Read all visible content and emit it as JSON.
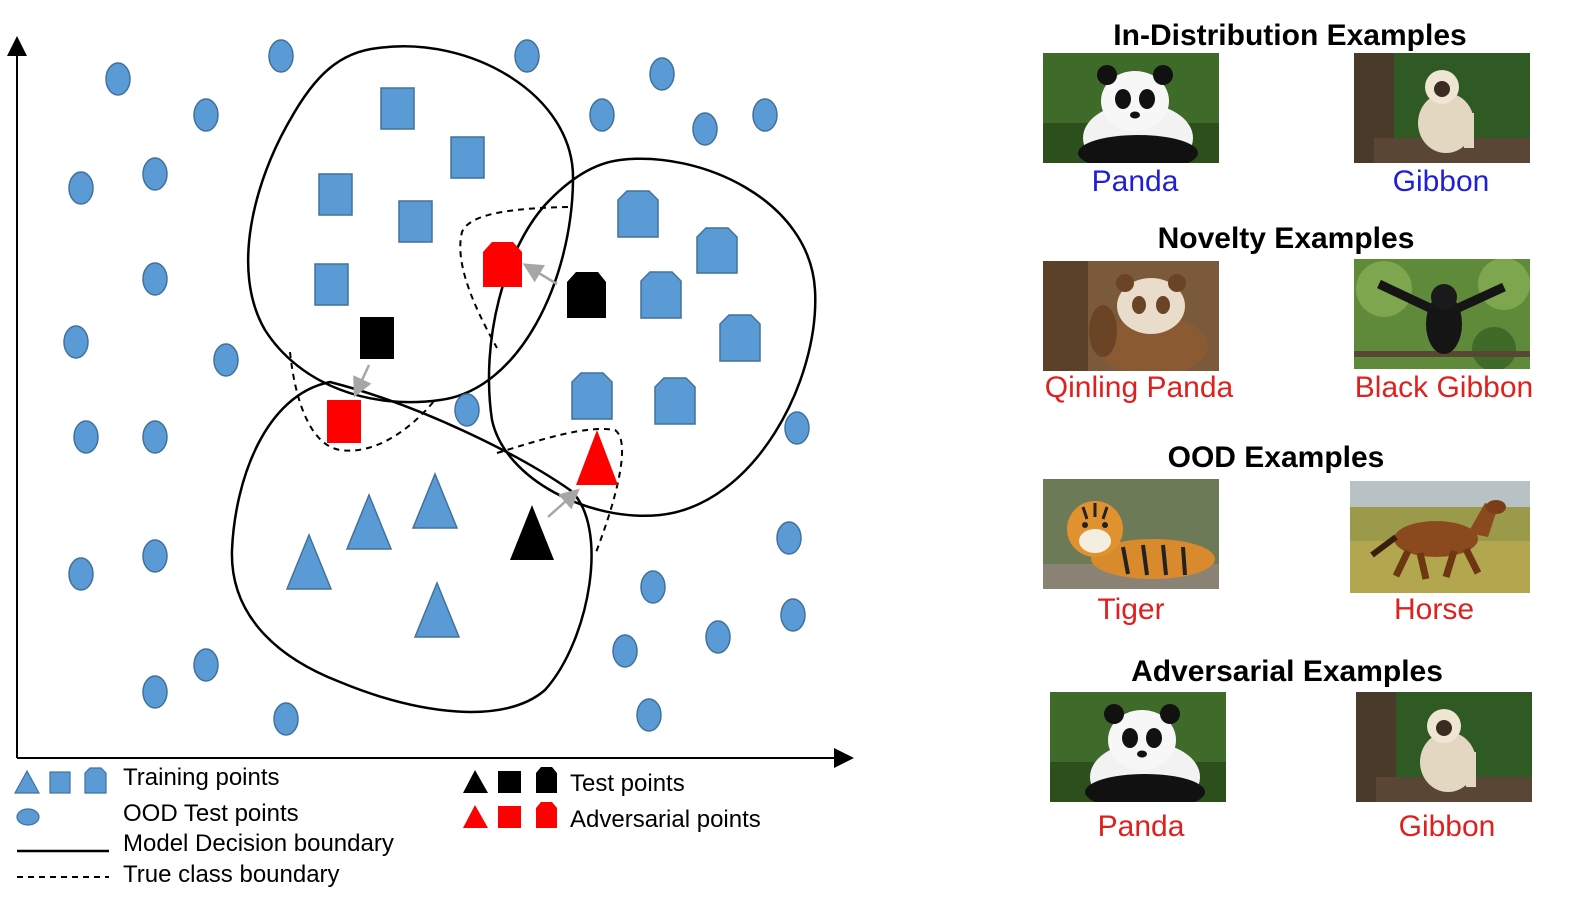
{
  "legend": {
    "training": "Training points",
    "ood_test": "OOD Test points",
    "decision_boundary": "Model Decision boundary",
    "true_boundary": "True class boundary",
    "test": "Test points",
    "adversarial": "Adversarial points"
  },
  "sections": [
    {
      "title": "In-Distribution Examples",
      "items": [
        {
          "label": "Panda",
          "subject": "panda-photo"
        },
        {
          "label": "Gibbon",
          "subject": "gibbon-photo"
        }
      ]
    },
    {
      "title": "Novelty Examples",
      "items": [
        {
          "label": "Qinling Panda",
          "subject": "qinling-panda-photo"
        },
        {
          "label": "Black Gibbon",
          "subject": "black-gibbon-photo"
        }
      ]
    },
    {
      "title": "OOD Examples",
      "items": [
        {
          "label": "Tiger",
          "subject": "tiger-photo"
        },
        {
          "label": "Horse",
          "subject": "horse-photo"
        }
      ]
    },
    {
      "title": "Adversarial Examples",
      "items": [
        {
          "label": "Panda",
          "subject": "panda-photo"
        },
        {
          "label": "Gibbon",
          "subject": "gibbon-photo"
        }
      ]
    }
  ],
  "colors": {
    "point_blue": "#5b9bd5",
    "point_stroke": "#41719c",
    "test_black": "#000000",
    "adversarial_red": "#ff0000",
    "in_dist_caption": "#1f1fd6",
    "other_caption": "#e0201e"
  }
}
